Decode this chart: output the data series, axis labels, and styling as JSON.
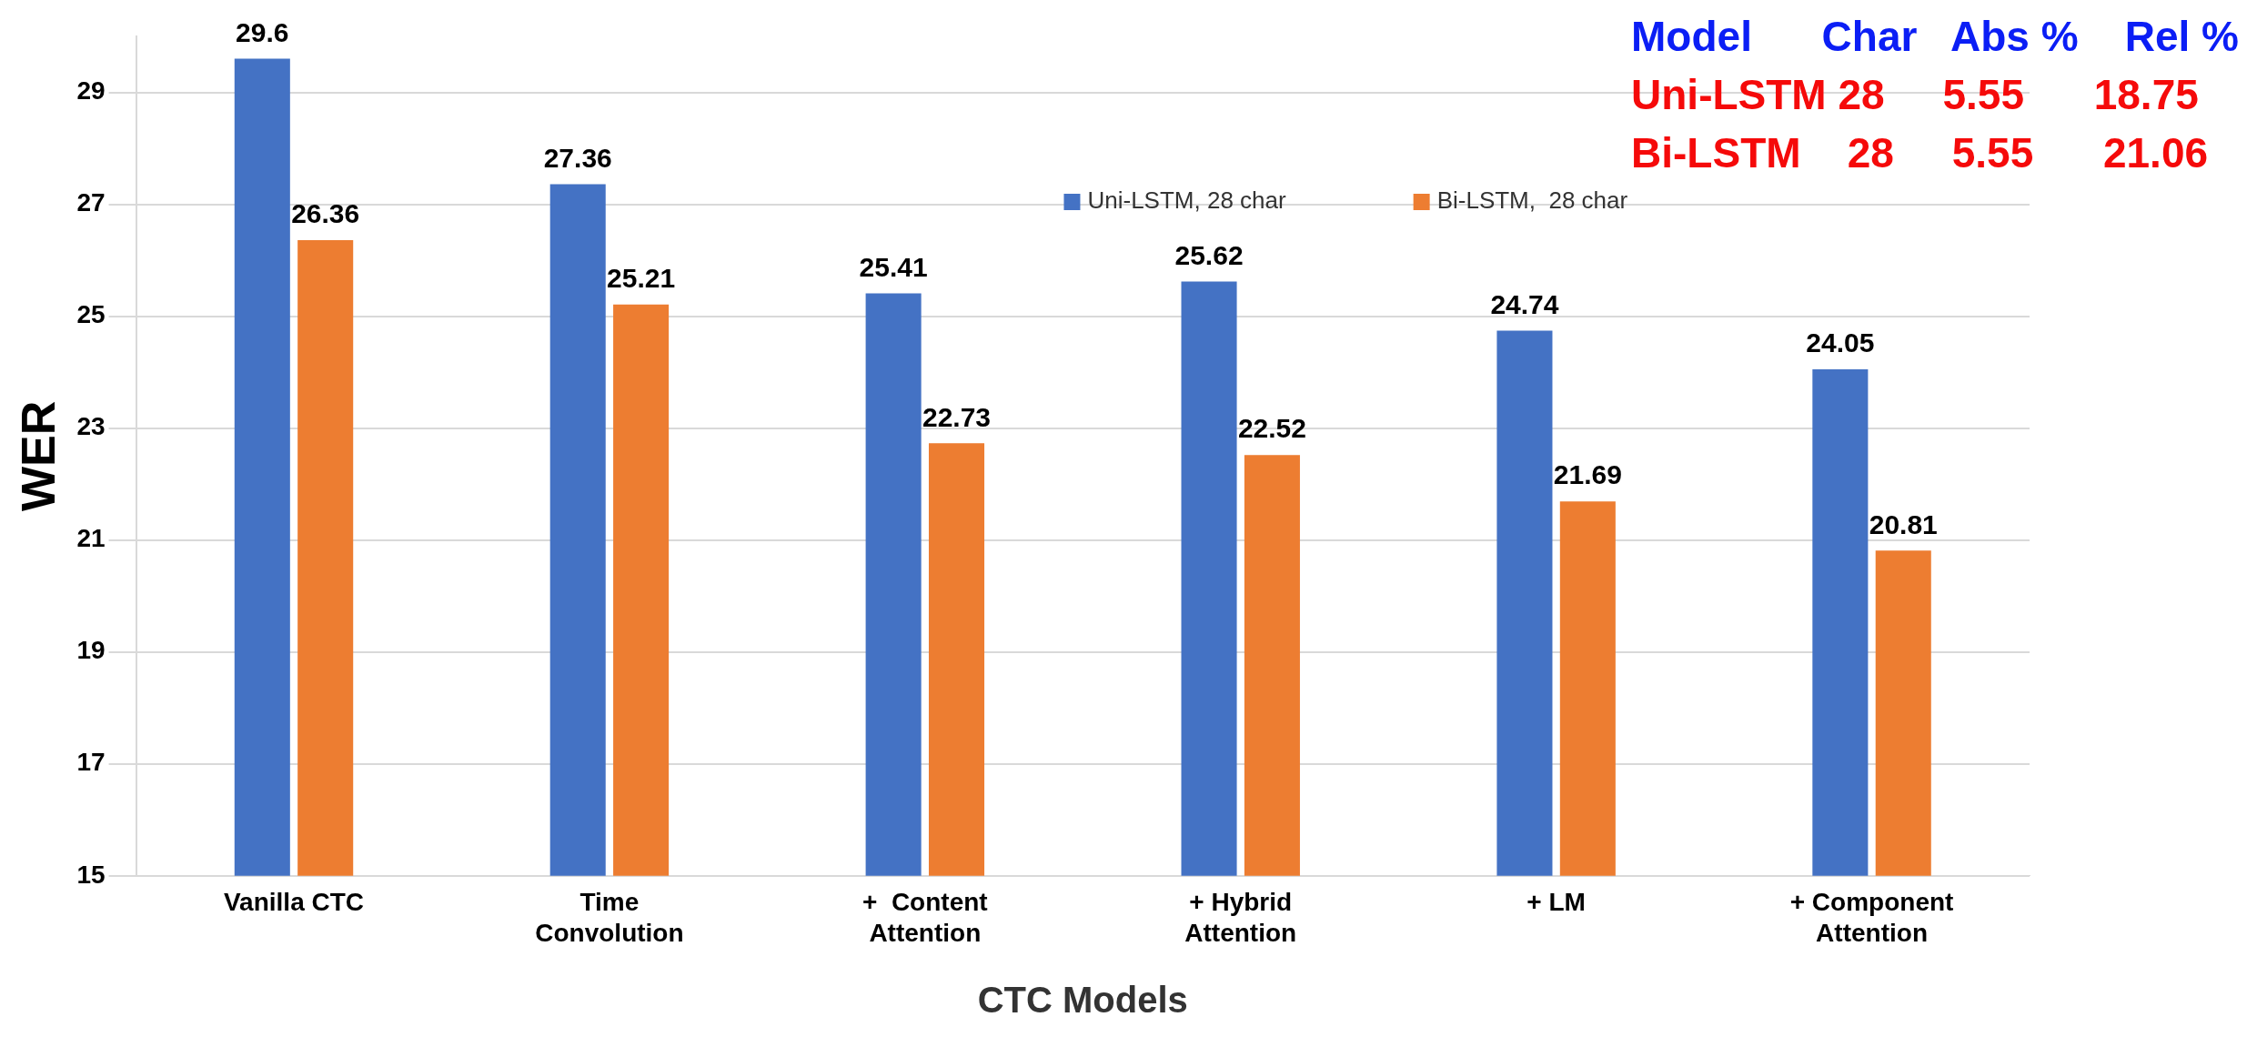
{
  "chart_data": {
    "type": "bar",
    "xlabel": "CTC Models",
    "ylabel": "WER",
    "categories": [
      "Vanilla CTC",
      "Time Convolution",
      "+  Content Attention",
      "+ Hybrid Attention",
      "+ LM",
      "+ Component Attention"
    ],
    "series": [
      {
        "name": "Uni-LSTM, 28 char",
        "color": "#4472c4",
        "values": [
          29.6,
          27.36,
          25.41,
          25.62,
          24.74,
          24.05
        ]
      },
      {
        "name": "Bi-LSTM,  28 char",
        "color": "#ed7d31",
        "values": [
          26.36,
          25.21,
          22.73,
          22.52,
          21.69,
          20.81
        ]
      }
    ],
    "ylim": [
      15,
      30
    ],
    "yticks": [
      15,
      17,
      19,
      21,
      23,
      25,
      27,
      29
    ],
    "grid": "y",
    "legend": "top",
    "data_labels": true,
    "annotations": [
      "Model      Char   Abs %    Rel %",
      "Uni-LSTM 28     5.55      18.75",
      "Bi-LSTM    28     5.55      21.06"
    ]
  }
}
